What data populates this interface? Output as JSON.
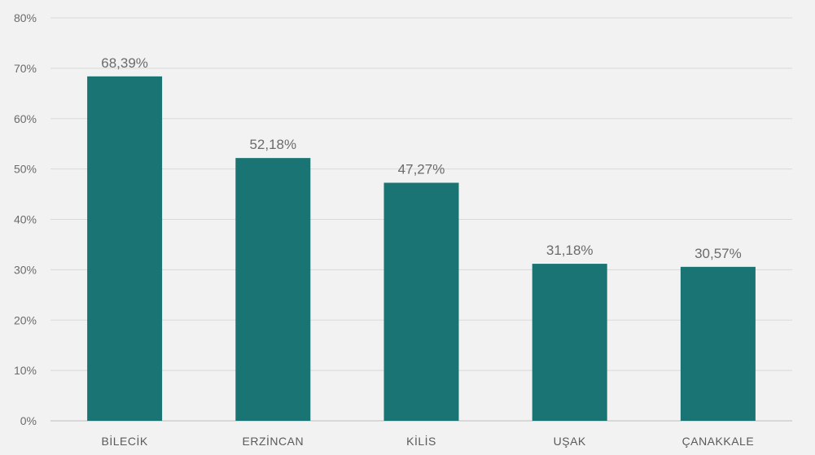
{
  "chart_data": {
    "type": "bar",
    "categories": [
      "BİLECİK",
      "ERZİNCAN",
      "KİLİS",
      "UŞAK",
      "ÇANAKKALE"
    ],
    "values": [
      68.39,
      52.18,
      47.27,
      31.18,
      30.57
    ],
    "data_labels": [
      "68,39%",
      "52,18%",
      "47,27%",
      "31,18%",
      "30,57%"
    ],
    "y_ticks": [
      0,
      10,
      20,
      30,
      40,
      50,
      60,
      70,
      80
    ],
    "y_tick_labels": [
      "0%",
      "10%",
      "20%",
      "30%",
      "40%",
      "50%",
      "60%",
      "70%",
      "80%"
    ],
    "ylim": [
      0,
      80
    ],
    "grid": true,
    "legend": "none",
    "bar_color": "#1b7474",
    "title": "",
    "xlabel": "",
    "ylabel": ""
  }
}
